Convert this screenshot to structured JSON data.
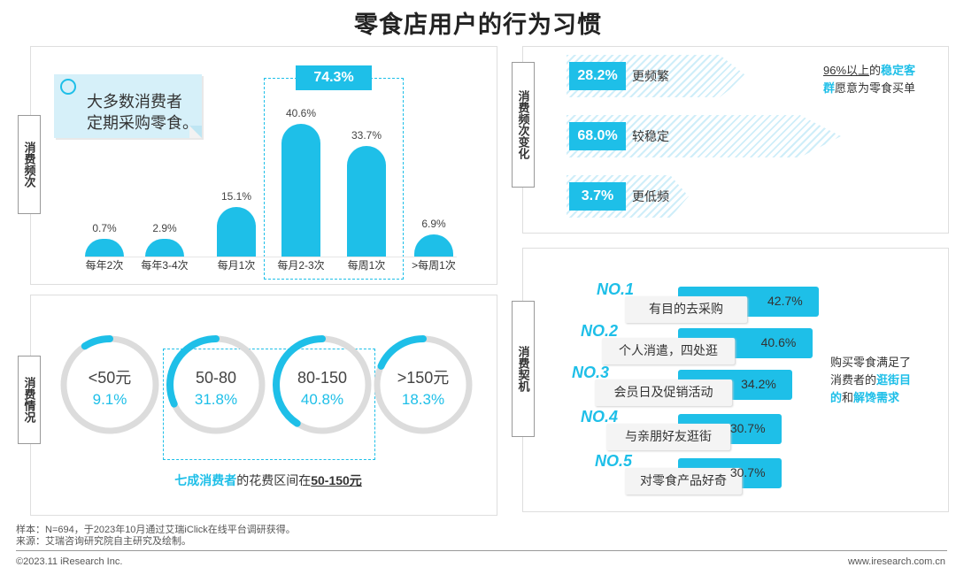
{
  "title": "零食店用户的行为习惯",
  "frequency": {
    "side_label": "消费频次",
    "callout": [
      "大多数消费者",
      "定期采购零食。"
    ],
    "highlight": "74.3%",
    "chart_data": {
      "type": "bar",
      "title": "消费频次",
      "categories": [
        "每年2次",
        "每年3-4次",
        "每月1次",
        "每月2-3次",
        "每周1次",
        ">每周1次"
      ],
      "values": [
        0.7,
        2.9,
        15.1,
        40.6,
        33.7,
        6.9
      ],
      "labels": [
        "0.7%",
        "2.9%",
        "15.1%",
        "40.6%",
        "33.7%",
        "6.9%"
      ],
      "unit": "%",
      "ylim": [
        0,
        45
      ]
    }
  },
  "frequency_change": {
    "side_label": "消费频次变化",
    "items": [
      {
        "pct": "28.2%",
        "label": "更频繁",
        "value": 28.2
      },
      {
        "pct": "68.0%",
        "label": "较稳定",
        "value": 68.0
      },
      {
        "pct": "3.7%",
        "label": "更低频",
        "value": 3.7
      }
    ],
    "note_a": "96%以上",
    "note_b": "的",
    "note_c": "稳定客",
    "note_d": "群",
    "note_e": "愿意为零食买单"
  },
  "spending": {
    "side_label": "消费情况",
    "chart_data": {
      "type": "pie",
      "title": "花费区间",
      "categories": [
        "<50元",
        "50-80",
        "80-150",
        ">150元"
      ],
      "values": [
        9.1,
        31.8,
        40.8,
        18.3
      ],
      "labels": [
        "9.1%",
        "31.8%",
        "40.8%",
        "18.3%"
      ],
      "unit": "%"
    },
    "caption_hl": "七成消费者",
    "caption_mid": "的花费区间在",
    "caption_range": "50-150元"
  },
  "motivation": {
    "side_label": "消费契机",
    "chart_data": {
      "type": "bar",
      "title": "消费契机",
      "ranks": [
        "NO.1",
        "NO.2",
        "NO.3",
        "NO.4",
        "NO.5"
      ],
      "categories": [
        "有目的去采购",
        "个人消遣，四处逛",
        "会员日及促销活动",
        "与亲朋好友逛街",
        "对零食产品好奇"
      ],
      "values": [
        42.7,
        40.6,
        34.2,
        30.7,
        30.7
      ],
      "labels": [
        "42.7%",
        "40.6%",
        "34.2%",
        "30.7%",
        "30.7%"
      ],
      "unit": "%"
    },
    "note_l1": "购买零食满足了",
    "note_l2a": "消费者的",
    "note_l2b": "逛街目",
    "note_l3a": "的",
    "note_l3b": "和",
    "note_l3c": "解馋需求"
  },
  "footer": {
    "sample": "样本：N=694，于2023年10月通过艾瑞iClick在线平台调研获得。",
    "source": "来源：艾瑞咨询研究院自主研究及绘制。",
    "copyright": "©2023.11 iResearch Inc.",
    "website": "www.iresearch.com.cn"
  },
  "colors": {
    "accent": "#1ebfe8",
    "track": "#dcdcdc",
    "callout": "#d6f0f9"
  }
}
